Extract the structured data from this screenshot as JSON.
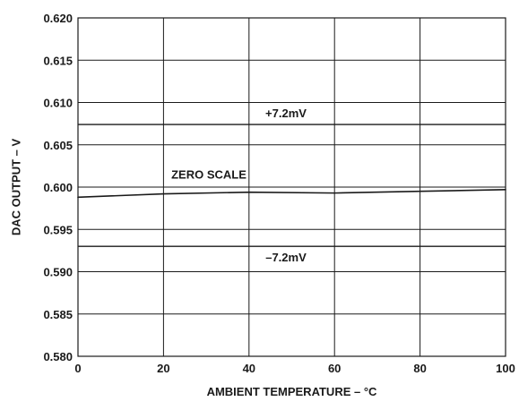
{
  "chart_data": {
    "type": "line",
    "title": "",
    "xlabel": "AMBIENT TEMPERATURE – °C",
    "ylabel": "DAC OUTPUT – V",
    "xlim": [
      0,
      100
    ],
    "ylim": [
      0.58,
      0.62
    ],
    "grid": true,
    "x_ticks": [
      "0",
      "20",
      "40",
      "60",
      "80",
      "100"
    ],
    "y_ticks": [
      "0.580",
      "0.585",
      "0.590",
      "0.595",
      "0.600",
      "0.605",
      "0.610",
      "0.615",
      "0.620"
    ],
    "series": [
      {
        "name": "ZERO SCALE",
        "x": [
          0,
          20,
          40,
          60,
          80,
          100
        ],
        "y": [
          0.5988,
          0.5992,
          0.5994,
          0.5993,
          0.5995,
          0.5997
        ]
      }
    ],
    "reference_lines": [
      {
        "label": "+7.2mV",
        "y": 0.6074
      },
      {
        "label": "–7.2mV",
        "y": 0.593
      }
    ],
    "colors": {
      "line": "#1a1a1a",
      "grid": "#1a1a1a",
      "background": "#ffffff"
    }
  }
}
